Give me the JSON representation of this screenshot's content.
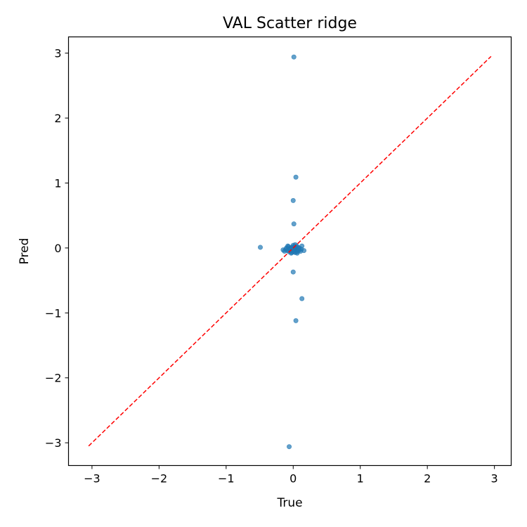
{
  "chart_data": {
    "type": "scatter",
    "title": "VAL Scatter ridge",
    "xlabel": "True",
    "ylabel": "Pred",
    "xlim": [
      -3.35,
      3.25
    ],
    "ylim": [
      -3.35,
      3.25
    ],
    "xticks": [
      -3,
      -2,
      -1,
      0,
      1,
      2,
      3
    ],
    "yticks": [
      -3,
      -2,
      -1,
      0,
      1,
      2,
      3
    ],
    "tick_labels": [
      "−3",
      "−2",
      "−1",
      "0",
      "1",
      "2",
      "3"
    ],
    "grid": false,
    "legend": "none",
    "colors": {
      "points": "#1f77b4",
      "reference_line": "#ff0000"
    },
    "reference_line": {
      "x": [
        -3.05,
        2.95
      ],
      "y": [
        -3.05,
        2.95
      ],
      "style": "dashed"
    },
    "points": [
      {
        "x": 0.01,
        "y": 2.94
      },
      {
        "x": 0.04,
        "y": 1.09
      },
      {
        "x": 0.0,
        "y": 0.73
      },
      {
        "x": 0.01,
        "y": 0.37
      },
      {
        "x": -0.49,
        "y": 0.01
      },
      {
        "x": 0.0,
        "y": -0.37
      },
      {
        "x": 0.13,
        "y": -0.78
      },
      {
        "x": 0.04,
        "y": -1.12
      },
      {
        "x": -0.06,
        "y": -3.06
      },
      {
        "x": -0.15,
        "y": -0.03
      },
      {
        "x": -0.13,
        "y": -0.05
      },
      {
        "x": -0.11,
        "y": -0.02
      },
      {
        "x": -0.09,
        "y": -0.04
      },
      {
        "x": -0.07,
        "y": 0.02
      },
      {
        "x": -0.06,
        "y": -0.06
      },
      {
        "x": -0.05,
        "y": -0.01
      },
      {
        "x": -0.04,
        "y": -0.05
      },
      {
        "x": -0.03,
        "y": 0.0
      },
      {
        "x": -0.02,
        "y": -0.07
      },
      {
        "x": -0.01,
        "y": -0.03
      },
      {
        "x": 0.0,
        "y": -0.05
      },
      {
        "x": 0.01,
        "y": 0.02
      },
      {
        "x": 0.02,
        "y": -0.04
      },
      {
        "x": 0.03,
        "y": -0.07
      },
      {
        "x": 0.04,
        "y": 0.0
      },
      {
        "x": 0.05,
        "y": -0.03
      },
      {
        "x": 0.06,
        "y": -0.06
      },
      {
        "x": 0.07,
        "y": 0.01
      },
      {
        "x": 0.08,
        "y": -0.04
      },
      {
        "x": 0.09,
        "y": -0.02
      },
      {
        "x": 0.11,
        "y": -0.05
      },
      {
        "x": 0.13,
        "y": 0.03
      },
      {
        "x": 0.16,
        "y": -0.04
      },
      {
        "x": 0.03,
        "y": 0.05
      },
      {
        "x": -0.08,
        "y": 0.03
      },
      {
        "x": 0.0,
        "y": 0.04
      },
      {
        "x": 0.06,
        "y": -0.08
      },
      {
        "x": -0.03,
        "y": -0.08
      },
      {
        "x": 0.02,
        "y": 0.0
      },
      {
        "x": 0.0,
        "y": -0.02
      },
      {
        "x": 0.01,
        "y": -0.06
      },
      {
        "x": 0.05,
        "y": 0.03
      },
      {
        "x": -0.02,
        "y": 0.01
      },
      {
        "x": 0.09,
        "y": 0.0
      },
      {
        "x": -0.1,
        "y": 0.0
      },
      {
        "x": 0.12,
        "y": -0.02
      }
    ]
  }
}
